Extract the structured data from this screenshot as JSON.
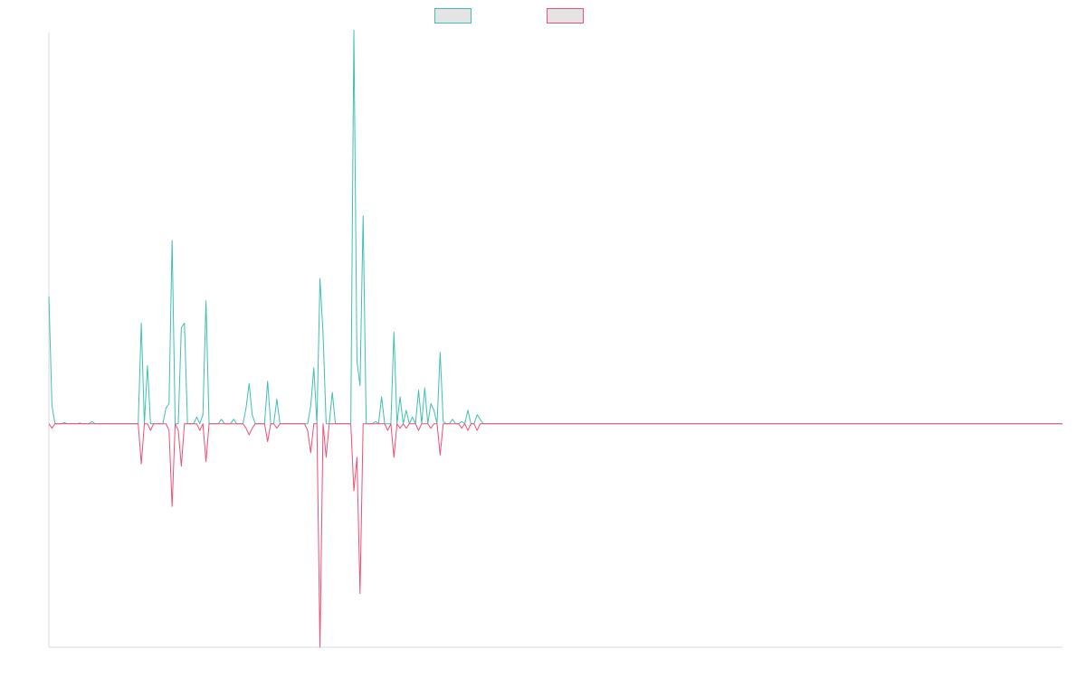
{
  "colors": {
    "series_a": "#3fbfb4",
    "series_b": "#ef4f74",
    "axis": "#d8d8d8",
    "legend_fill": "#e4e4e4"
  },
  "chart_data": {
    "type": "line",
    "title": "",
    "xlabel": "",
    "ylabel": "",
    "legend_position": "top-center",
    "grid": false,
    "xlim": [
      0,
      329
    ],
    "ylim": [
      -100,
      175
    ],
    "series": [
      {
        "color": "#3fbfb4",
        "values": [
          57,
          8,
          0,
          0,
          0,
          0.5,
          0,
          0,
          0,
          0,
          0.3,
          0,
          0,
          0,
          1,
          0,
          0,
          0,
          0,
          0,
          0,
          0,
          0,
          0,
          0,
          0,
          0,
          0,
          0,
          0,
          45,
          0,
          26,
          0,
          0,
          0,
          0,
          0,
          7,
          9,
          82,
          0,
          0,
          43,
          45,
          0,
          0,
          0,
          3,
          0,
          4,
          55,
          0,
          0,
          0,
          0,
          2,
          0,
          0,
          0,
          2,
          0,
          0,
          0,
          7,
          18,
          4,
          0,
          0,
          0,
          0,
          19,
          0,
          0,
          11,
          0,
          0,
          0,
          0,
          0,
          0,
          0,
          0,
          0,
          0,
          8,
          25,
          0,
          65,
          40,
          0,
          0,
          14,
          0,
          0,
          0,
          0,
          0,
          0,
          176,
          28,
          17,
          93,
          0,
          0,
          0,
          1,
          0,
          12,
          0,
          0,
          0,
          41,
          0,
          12,
          0,
          6,
          0,
          3,
          0,
          15,
          0,
          16,
          0,
          9,
          6,
          0,
          32,
          1,
          0,
          0,
          2,
          0,
          0,
          1,
          0,
          6,
          0,
          0,
          4,
          2,
          0
        ]
      },
      {
        "color": "#ef4f74",
        "values": [
          0,
          -2,
          0,
          0,
          0,
          0,
          0,
          0,
          0,
          0,
          0,
          0,
          0,
          0,
          0,
          0,
          0,
          0,
          0,
          0,
          0,
          0,
          0,
          0,
          0,
          0,
          0,
          0,
          0,
          0,
          -18,
          0,
          0,
          -3,
          0,
          0,
          0,
          0,
          0,
          -3,
          -37,
          0,
          -3,
          -19,
          0,
          0,
          0,
          0,
          0,
          -3,
          0,
          -17,
          0,
          0,
          0,
          0,
          0,
          0,
          0,
          0,
          0,
          0,
          0,
          0,
          -2,
          -5,
          -2,
          0,
          0,
          0,
          0,
          -8,
          0,
          0,
          -2,
          0,
          0,
          0,
          0,
          0,
          0,
          0,
          0,
          0,
          -3,
          -13,
          0,
          0,
          -100,
          0,
          -15,
          0,
          0,
          0,
          0,
          0,
          0,
          0,
          0,
          -30,
          -15,
          -76,
          0,
          0,
          0,
          0,
          0,
          0,
          0,
          0,
          -3,
          0,
          -15,
          0,
          -2,
          0,
          -2,
          0,
          0,
          0,
          -3,
          0,
          0,
          0,
          -2,
          0,
          0,
          -14,
          0,
          0,
          0,
          0,
          0,
          0,
          -2,
          0,
          -3,
          0,
          0,
          -3,
          0,
          0
        ]
      }
    ]
  }
}
